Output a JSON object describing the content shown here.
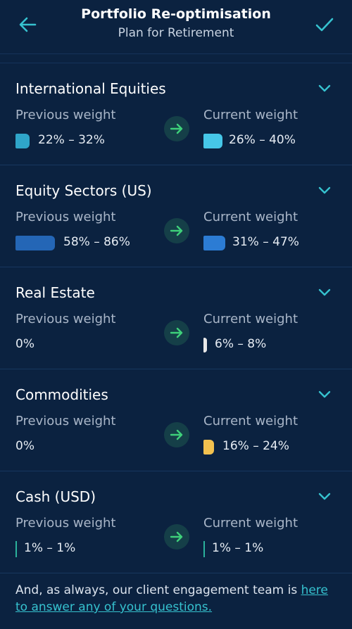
{
  "header": {
    "title": "Portfolio Re-optimisation",
    "subtitle": "Plan for Retirement"
  },
  "labels": {
    "previous": "Previous weight",
    "current": "Current weight"
  },
  "items": [
    {
      "title": "International Equities",
      "previous": "22% – 32%",
      "current": "26% – 40%",
      "previous_color": "#2fa5c9",
      "current_color": "#46c7e8"
    },
    {
      "title": "Equity Sectors (US)",
      "previous": "58% – 86%",
      "current": "31% – 47%",
      "previous_color": "#2466b6",
      "current_color": "#2c7cd4"
    },
    {
      "title": "Real Estate",
      "previous": "0%",
      "current": "6% – 8%",
      "current_color": "#e8e8e8"
    },
    {
      "title": "Commodities",
      "previous": "0%",
      "current": "16% – 24%",
      "current_color": "#f2c14f"
    },
    {
      "title": "Cash (USD)",
      "previous": "1% – 1%",
      "current": "1% – 1%",
      "previous_color": "#2bb29c",
      "current_color": "#2bb29c"
    }
  ],
  "footer": {
    "text": "And, as always, our client engagement team is ",
    "link": "here to answer any of your questions."
  },
  "colors": {
    "background": "#0b2240",
    "accent": "#2bb29c",
    "link": "#36c2cf"
  }
}
